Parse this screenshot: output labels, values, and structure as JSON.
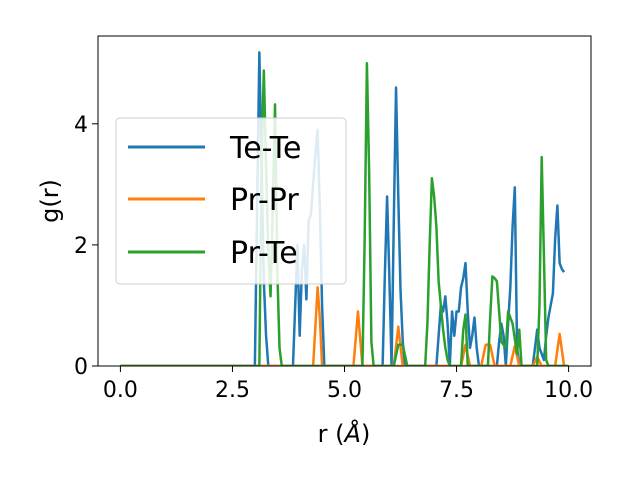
{
  "chart_data": {
    "type": "line",
    "title": "",
    "xlabel_main": "r (",
    "xlabel_unit": "Å",
    "xlabel_end": ")",
    "ylabel": "g(r)",
    "xlim": [
      -0.5,
      10.5
    ],
    "ylim": [
      0,
      5.45
    ],
    "xticks": [
      0.0,
      2.5,
      5.0,
      7.5,
      10.0
    ],
    "xtick_labels": [
      "0.0",
      "2.5",
      "5.0",
      "7.5",
      "10.0"
    ],
    "yticks": [
      0,
      2,
      4
    ],
    "ytick_labels": [
      "0",
      "2",
      "4"
    ],
    "legend_position": "center-left",
    "series": [
      {
        "name": "Te-Te",
        "color": "#1f77b4",
        "x": [
          0,
          3.0,
          3.05,
          3.1,
          3.15,
          3.2,
          3.25,
          3.3,
          3.35,
          3.4,
          3.45,
          3.5,
          3.55,
          3.6,
          3.7,
          3.8,
          3.85,
          3.9,
          3.95,
          4.0,
          4.05,
          4.1,
          4.15,
          4.2,
          4.25,
          4.3,
          4.35,
          4.4,
          4.45,
          4.5,
          4.55,
          4.6,
          5.85,
          5.9,
          5.95,
          6.0,
          6.05,
          6.1,
          6.15,
          6.2,
          6.25,
          6.3,
          6.35,
          7.05,
          7.1,
          7.15,
          7.2,
          7.25,
          7.3,
          7.35,
          7.4,
          7.45,
          7.5,
          7.55,
          7.6,
          7.65,
          7.7,
          7.75,
          7.8,
          7.85,
          7.9,
          7.95,
          8.0,
          8.05,
          8.1,
          8.15,
          8.2,
          8.3,
          8.4,
          8.45,
          8.5,
          8.55,
          8.6,
          8.65,
          8.7,
          8.75,
          8.8,
          8.85,
          8.9,
          9.0,
          9.1,
          9.15,
          9.2,
          9.25,
          9.3,
          9.35,
          9.4,
          9.45,
          9.5,
          9.55,
          9.6,
          9.65,
          9.7,
          9.75,
          9.8,
          9.85,
          9.9
        ],
        "y": [
          0,
          0,
          2.6,
          5.18,
          3.3,
          1.4,
          0.5,
          0,
          0,
          0,
          0,
          0,
          0,
          0,
          0,
          0,
          0,
          1.0,
          2.0,
          0.5,
          1.6,
          2.0,
          1.1,
          2.4,
          2.5,
          3.0,
          3.5,
          3.9,
          2.6,
          1.0,
          0,
          0,
          0,
          1.5,
          2.8,
          1.5,
          0,
          2.4,
          4.6,
          2.8,
          1.25,
          0.4,
          0,
          0,
          0.5,
          1.0,
          0.9,
          1.15,
          0.7,
          0,
          0.9,
          0.5,
          0.9,
          0.9,
          1.3,
          1.45,
          1.7,
          0.9,
          0.3,
          0.5,
          0.8,
          0.3,
          0,
          0,
          0,
          0,
          0,
          0,
          0,
          0.4,
          0.7,
          0.5,
          0,
          0.7,
          1.3,
          2.3,
          2.95,
          0.3,
          0,
          0,
          0,
          0,
          0,
          0.3,
          0.6,
          0.3,
          0.2,
          0.1,
          0.5,
          0.8,
          1.0,
          1.2,
          2.1,
          2.65,
          1.7,
          1.6,
          1.55
        ]
      },
      {
        "name": "Pr-Pr",
        "color": "#ff7f0e",
        "x": [
          0,
          4.3,
          4.4,
          4.45,
          4.5,
          5.2,
          5.3,
          5.4,
          6.1,
          6.2,
          6.3,
          7.6,
          7.7,
          7.8,
          8.05,
          8.15,
          8.25,
          8.35,
          8.7,
          8.8,
          8.9,
          9.2,
          9.3,
          9.4,
          9.7,
          9.8,
          9.9
        ],
        "y": [
          0,
          0,
          1.3,
          0.8,
          0,
          0,
          0.9,
          0,
          0,
          0.65,
          0,
          0,
          0.35,
          0,
          0,
          0.35,
          0.35,
          0,
          0,
          0.33,
          0,
          0,
          0.15,
          0,
          0,
          0.53,
          0
        ],
        "endline_x": [
          0,
          10.0
        ],
        "endline_y": [
          0,
          0
        ]
      },
      {
        "name": "Pr-Te",
        "color": "#2ca02c",
        "x": [
          0,
          3.1,
          3.15,
          3.2,
          3.25,
          3.3,
          3.35,
          3.4,
          3.45,
          3.5,
          3.55,
          3.6,
          5.4,
          5.45,
          5.5,
          5.55,
          5.6,
          5.65,
          6.1,
          6.2,
          6.3,
          6.4,
          6.8,
          6.85,
          6.9,
          6.95,
          7.0,
          7.05,
          7.1,
          7.15,
          7.2,
          7.25,
          7.3,
          7.35,
          7.6,
          7.65,
          7.7,
          7.75,
          8.2,
          8.25,
          8.3,
          8.35,
          8.4,
          8.5,
          8.6,
          8.65,
          8.75,
          8.85,
          8.9,
          8.95,
          9.2,
          9.3,
          9.35,
          9.4,
          9.45,
          9.5,
          9.55,
          9.6,
          10.0
        ],
        "y": [
          0,
          0,
          3.4,
          4.88,
          3.3,
          1.9,
          1.15,
          2.6,
          4.32,
          1.6,
          0.3,
          0,
          0,
          2.1,
          5.0,
          3.2,
          0.4,
          0,
          0,
          0.35,
          0.35,
          0,
          0,
          0.7,
          2.0,
          3.1,
          2.8,
          2.3,
          1.4,
          1.0,
          0.6,
          0.3,
          0.1,
          0,
          0,
          0.6,
          0.85,
          0,
          0,
          0.8,
          1.48,
          1.45,
          1.4,
          0.4,
          0.3,
          0.9,
          0.7,
          0.2,
          0.6,
          0,
          0,
          0,
          1.0,
          3.45,
          1.8,
          0.1,
          0,
          0,
          0
        ]
      }
    ]
  }
}
